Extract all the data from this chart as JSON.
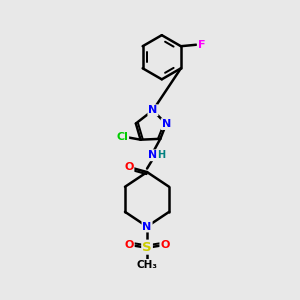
{
  "bg_color": "#e8e8e8",
  "bond_color": "#000000",
  "bond_width": 1.8,
  "atom_colors": {
    "N": "#0000ff",
    "O": "#ff0000",
    "S": "#cccc00",
    "F": "#ff00ff",
    "Cl": "#00cc00",
    "H": "#008080",
    "C": "#000000"
  },
  "figsize": [
    3.0,
    3.0
  ],
  "dpi": 100,
  "xlim": [
    0,
    10
  ],
  "ylim": [
    0,
    10
  ]
}
